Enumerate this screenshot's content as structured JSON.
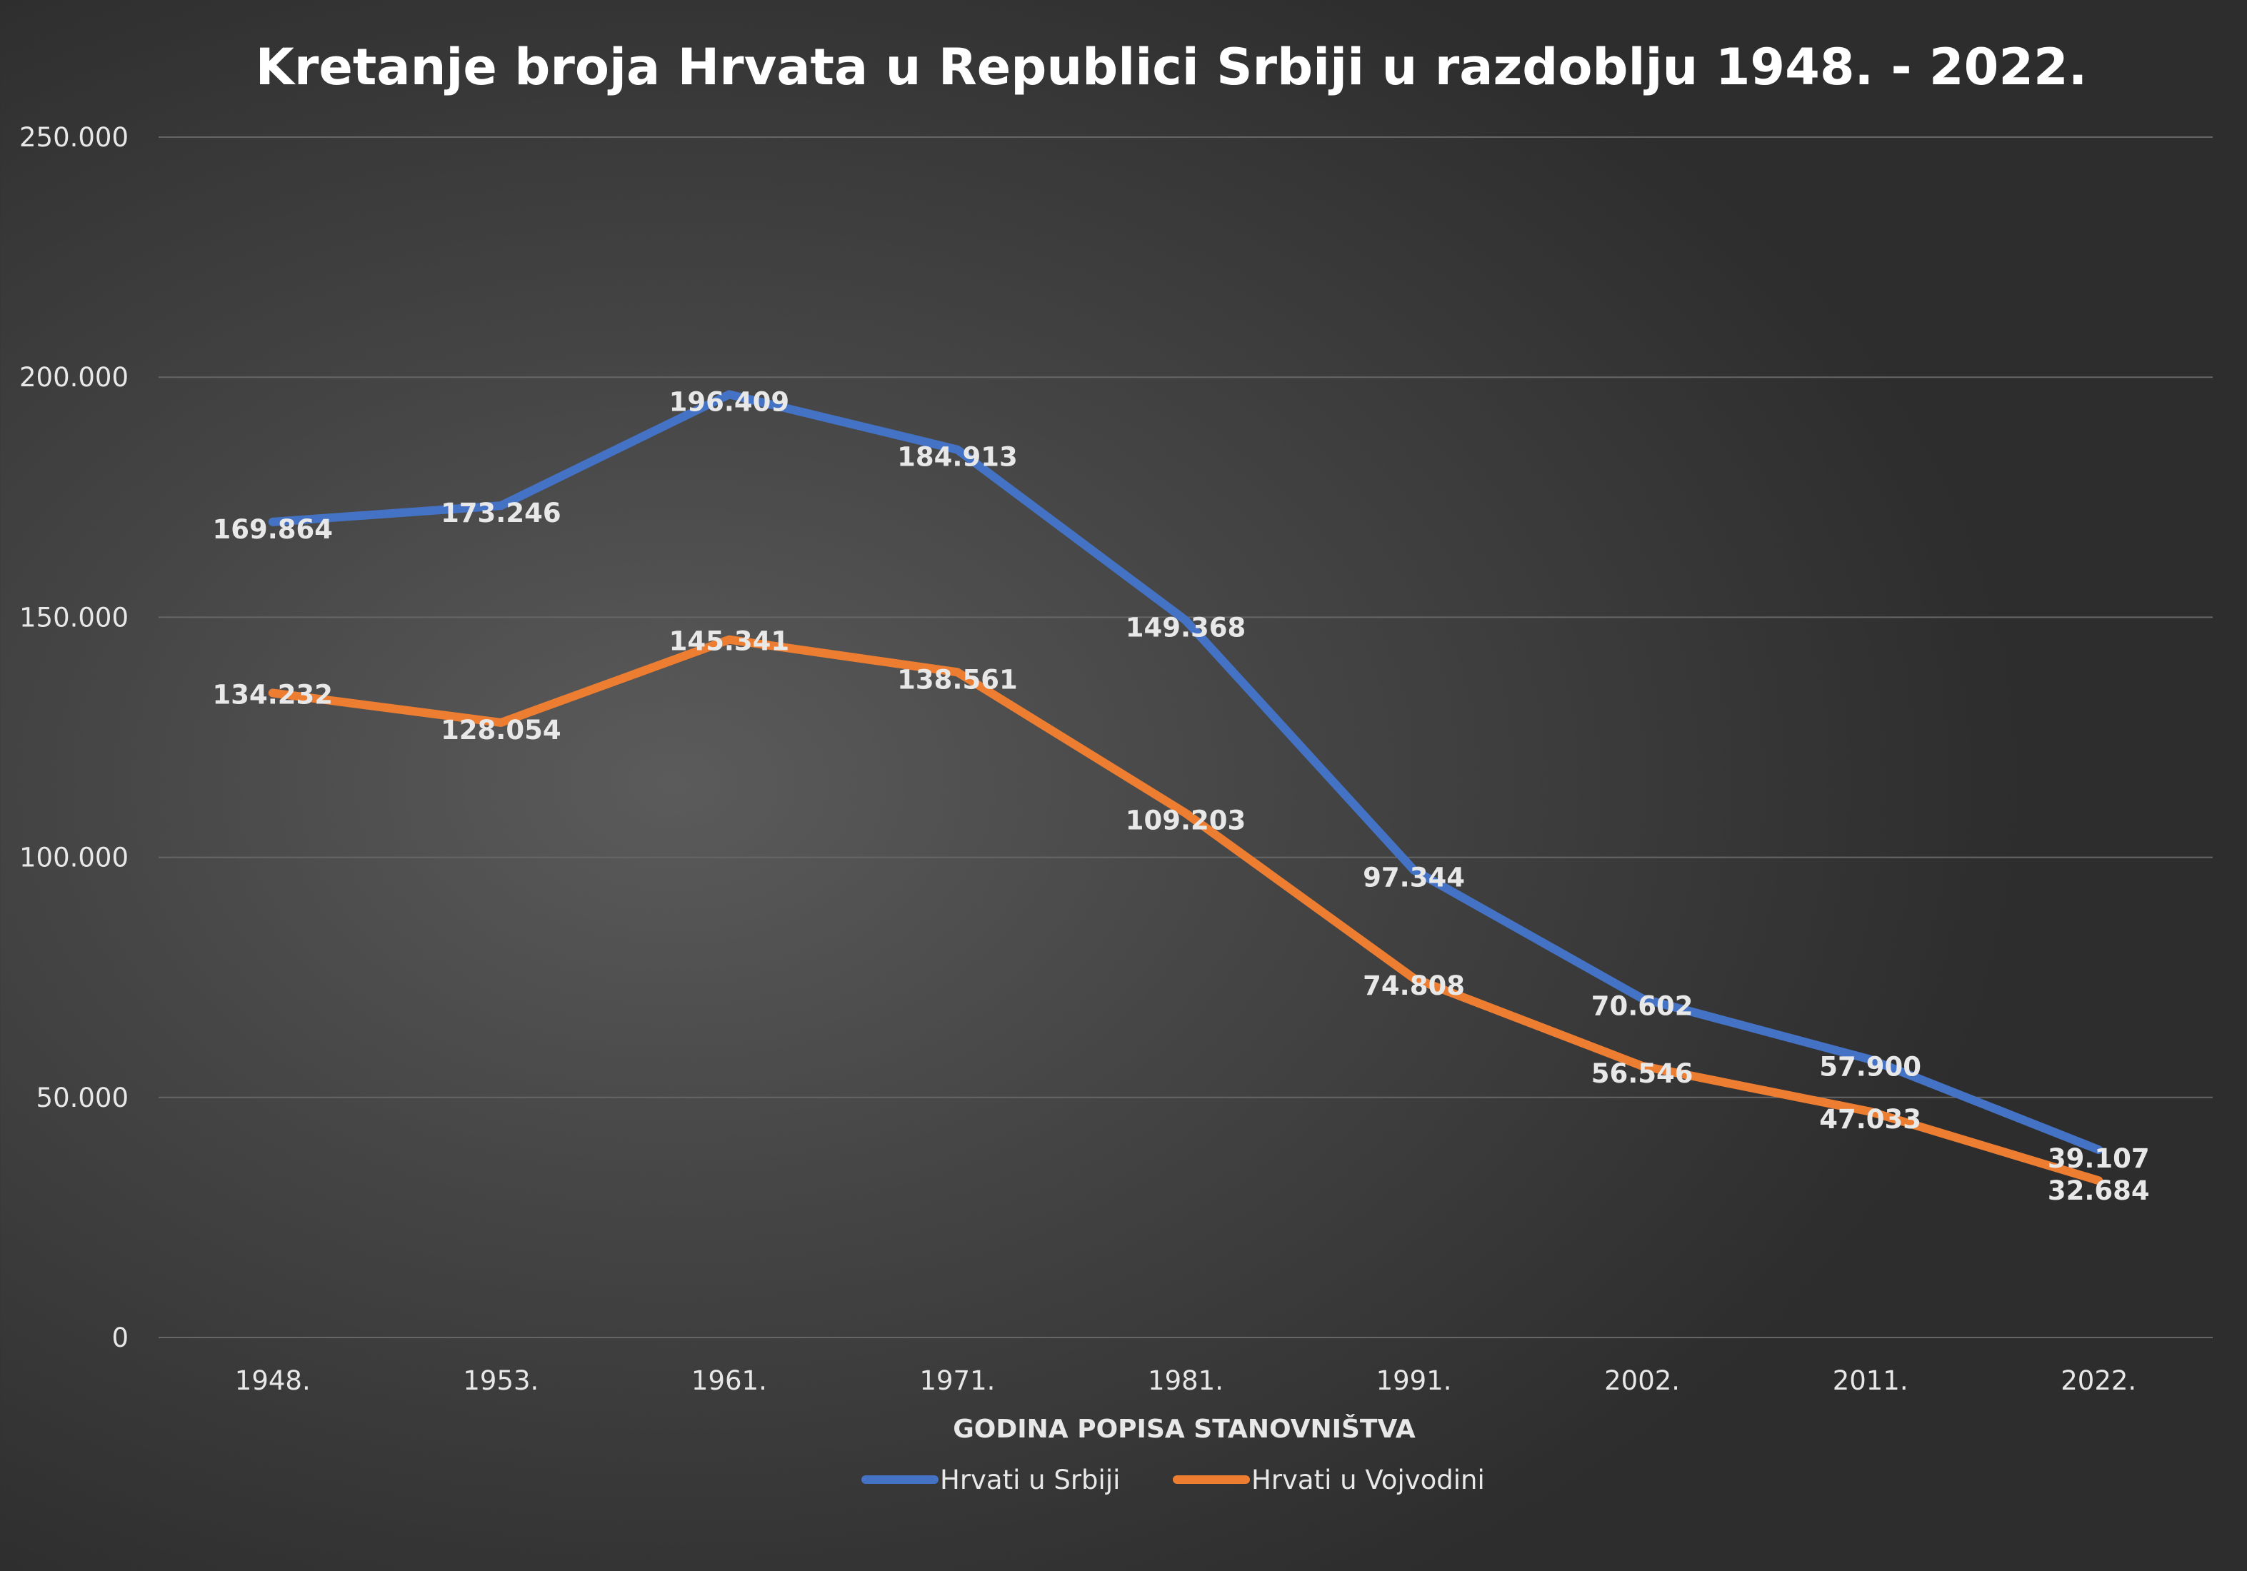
{
  "chart_data": {
    "type": "line",
    "title": "Kretanje broja Hrvata u Republici Srbiji u razdoblju 1948. - 2022.",
    "xlabel": "GODINA POPISA STANOVNIŠTVA",
    "ylabel": "",
    "categories": [
      "1948.",
      "1953.",
      "1961.",
      "1971.",
      "1981.",
      "1991.",
      "2002.",
      "2011.",
      "2022."
    ],
    "ylim": [
      0,
      250000
    ],
    "yticks": [
      0,
      50000,
      100000,
      150000,
      200000,
      250000
    ],
    "ytick_labels": [
      "0",
      "50.000",
      "100.000",
      "150.000",
      "200.000",
      "250.000"
    ],
    "grid": "horizontal",
    "legend_position": "bottom",
    "series": [
      {
        "name": "Hrvati u Srbiji",
        "color": "#4472c4",
        "values": [
          169864,
          173246,
          196409,
          184913,
          149368,
          97344,
          70602,
          57900,
          39107
        ],
        "labels": [
          "169.864",
          "173.246",
          "196.409",
          "184.913",
          "149.368",
          "97.344",
          "70.602",
          "57.900",
          "39.107"
        ]
      },
      {
        "name": "Hrvati u Vojvodini",
        "color": "#ed7d31",
        "values": [
          134232,
          128054,
          145341,
          138561,
          109203,
          74808,
          56546,
          47033,
          32684
        ],
        "labels": [
          "134.232",
          "128.054",
          "145.341",
          "138.561",
          "109.203",
          "74.808",
          "56.546",
          "47.033",
          "32.684"
        ]
      }
    ]
  },
  "colors": {
    "text": "#e8e8e8",
    "gridline": "#666666"
  }
}
